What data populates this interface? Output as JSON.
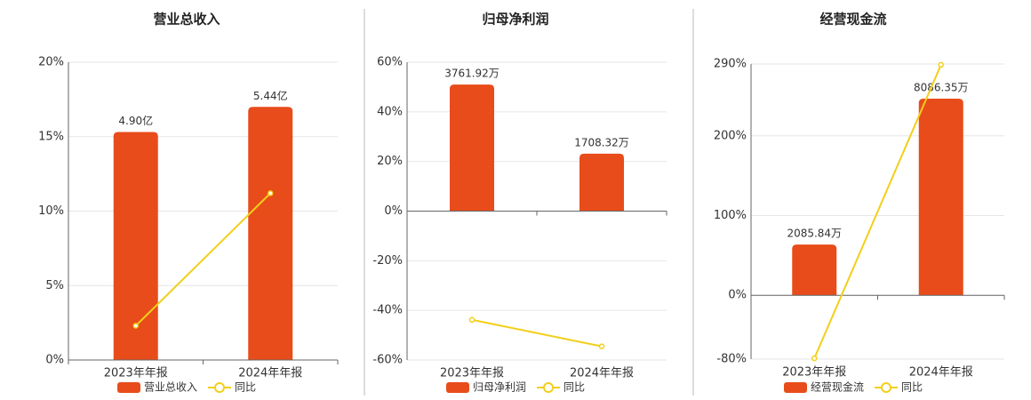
{
  "chart_data": [
    {
      "type": "bar",
      "title": "营业总收入",
      "categories": [
        "2023年年报",
        "2024年年报"
      ],
      "series": [
        {
          "name": "营业总收入",
          "type": "bar",
          "color": "#e84c1a",
          "values": [
            4.9,
            5.44
          ],
          "value_labels": [
            "4.90亿",
            "5.44亿"
          ]
        },
        {
          "name": "同比",
          "type": "line",
          "color": "#f2cf1a",
          "values": [
            2.3,
            11.2
          ]
        }
      ],
      "ylim": [
        0,
        20
      ],
      "yticks": [
        {
          "value": 0,
          "label": "0%"
        },
        {
          "value": 5,
          "label": "5%"
        },
        {
          "value": 10,
          "label": "10%"
        },
        {
          "value": 15,
          "label": "15%"
        },
        {
          "value": 20,
          "label": "20%"
        }
      ],
      "grid": true
    },
    {
      "type": "bar",
      "title": "归母净利润",
      "categories": [
        "2023年年报",
        "2024年年报"
      ],
      "series": [
        {
          "name": "归母净利润",
          "type": "bar",
          "color": "#e84c1a",
          "values": [
            3761.92,
            1708.32
          ],
          "value_labels": [
            "3761.92万",
            "1708.32万"
          ]
        },
        {
          "name": "同比",
          "type": "line",
          "color": "#f2cf1a",
          "values": [
            -43.8,
            -54.5
          ]
        }
      ],
      "ylim": [
        -60,
        60
      ],
      "yticks": [
        {
          "value": -60,
          "label": "-60%"
        },
        {
          "value": -40,
          "label": "-40%"
        },
        {
          "value": -20,
          "label": "-20%"
        },
        {
          "value": 0,
          "label": "0%"
        },
        {
          "value": 20,
          "label": "20%"
        },
        {
          "value": 40,
          "label": "40%"
        },
        {
          "value": 60,
          "label": "60%"
        }
      ],
      "grid": true
    },
    {
      "type": "bar",
      "title": "经营现金流",
      "categories": [
        "2023年年报",
        "2024年年报"
      ],
      "series": [
        {
          "name": "经营现金流",
          "type": "bar",
          "color": "#e84c1a",
          "values": [
            2085.84,
            8086.35
          ],
          "value_labels": [
            "2085.84万",
            "8086.35万"
          ]
        },
        {
          "name": "同比",
          "type": "line",
          "color": "#f2cf1a",
          "values": [
            -79,
            289
          ]
        }
      ],
      "ylim": [
        -80,
        290
      ],
      "yticks": [
        {
          "value": -80,
          "label": "-80%"
        },
        {
          "value": 0,
          "label": "0%"
        },
        {
          "value": 100,
          "label": "100%"
        },
        {
          "value": 200,
          "label": "200%"
        },
        {
          "value": 290,
          "label": "290%"
        }
      ],
      "grid": true
    }
  ]
}
